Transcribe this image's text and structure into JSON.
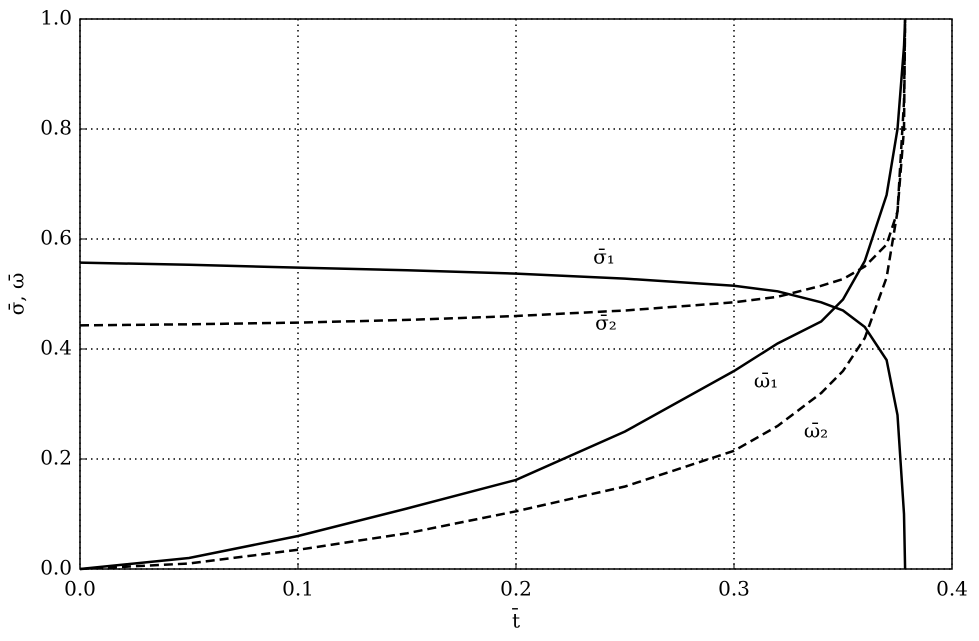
{
  "chart_data": {
    "type": "line",
    "xlabel": "t̄",
    "ylabel": "σ̄, ω̄",
    "x": [
      0,
      0.05,
      0.1,
      0.15,
      0.2,
      0.25,
      0.3,
      0.32,
      0.34,
      0.35,
      0.36,
      0.37,
      0.375,
      0.378,
      0.3785
    ],
    "series": [
      {
        "name": "σ̄₁",
        "color": "#000000",
        "dash": false,
        "values": [
          0.557,
          0.553,
          0.548,
          0.543,
          0.537,
          0.528,
          0.515,
          0.505,
          0.485,
          0.47,
          0.44,
          0.38,
          0.28,
          0.1,
          0
        ]
      },
      {
        "name": "σ̄₂",
        "color": "#000000",
        "dash": true,
        "values": [
          0.443,
          0.445,
          0.448,
          0.453,
          0.46,
          0.47,
          0.485,
          0.495,
          0.515,
          0.527,
          0.55,
          0.59,
          0.65,
          0.8,
          1.0
        ]
      },
      {
        "name": "ω̄₁",
        "color": "#000000",
        "dash": false,
        "values": [
          0,
          0.02,
          0.06,
          0.11,
          0.162,
          0.25,
          0.36,
          0.41,
          0.45,
          0.49,
          0.56,
          0.68,
          0.8,
          0.95,
          1.0
        ]
      },
      {
        "name": "ω̄₂",
        "color": "#000000",
        "dash": true,
        "values": [
          0,
          0.01,
          0.035,
          0.065,
          0.105,
          0.15,
          0.215,
          0.26,
          0.32,
          0.36,
          0.42,
          0.53,
          0.65,
          0.85,
          1.0
        ]
      }
    ],
    "xlim": [
      0,
      0.4
    ],
    "ylim": [
      0,
      1
    ],
    "xticks": [
      {
        "value": 0,
        "label": "0.0"
      },
      0.1,
      0.2,
      0.3,
      0.4
    ],
    "yticks": [
      {
        "value": 0,
        "label": "0.0"
      },
      0.2,
      0.4,
      0.6,
      0.8,
      {
        "value": 1,
        "label": "1.0"
      }
    ],
    "grid": true
  }
}
